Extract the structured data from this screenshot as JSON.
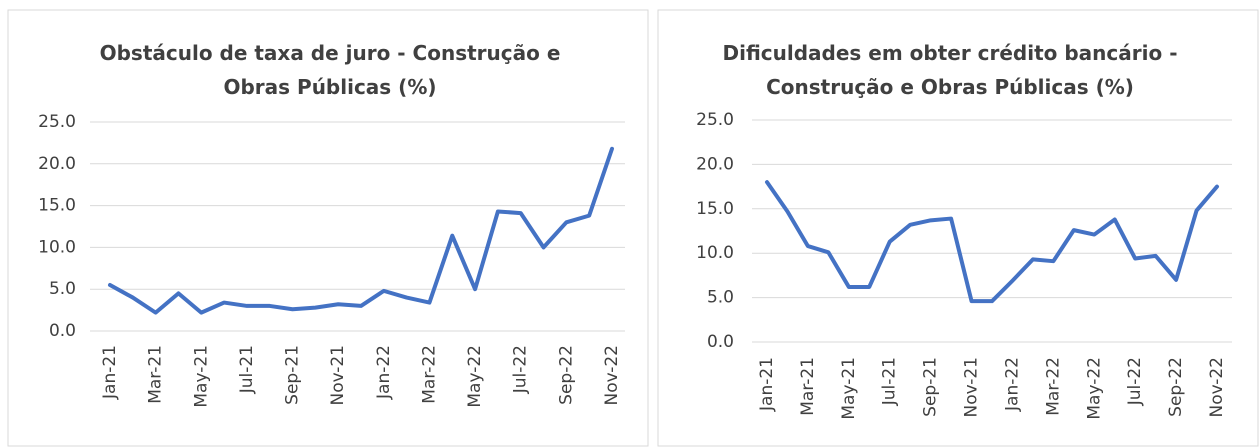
{
  "chart_data": [
    {
      "type": "line",
      "title": "Obstáculo de taxa de juro - Construção e Obras Públicas (%)",
      "categories": [
        "Jan-21",
        null,
        "Mar-21",
        null,
        "May-21",
        null,
        "Jul-21",
        null,
        "Sep-21",
        null,
        "Nov-21",
        null,
        "Jan-22",
        null,
        "Mar-22",
        null,
        "May-22",
        null,
        "Jul-22",
        null,
        "Sep-22",
        null,
        "Nov-22"
      ],
      "values": [
        5.5,
        4.0,
        2.2,
        4.5,
        2.2,
        3.4,
        3.0,
        3.0,
        2.6,
        2.8,
        3.2,
        3.0,
        4.8,
        4.0,
        3.4,
        11.4,
        5.0,
        14.3,
        14.1,
        10.0,
        13.0,
        13.8,
        21.8
      ],
      "color": "#4472c4",
      "ylim": [
        0,
        25
      ],
      "yticks": [
        {
          "value": 0,
          "label": "0.0"
        },
        {
          "value": 5,
          "label": "5.0"
        },
        {
          "value": 10,
          "label": "10.0"
        },
        {
          "value": 15,
          "label": "15.0"
        },
        {
          "value": 20,
          "label": "20.0"
        },
        {
          "value": 25,
          "label": "25.0"
        }
      ],
      "grid": true
    },
    {
      "type": "line",
      "title": "Dificuldades em obter crédito bancário - Construção e Obras Públicas (%)",
      "categories": [
        "Jan-21",
        null,
        "Mar-21",
        null,
        "May-21",
        null,
        "Jul-21",
        null,
        "Sep-21",
        null,
        "Nov-21",
        null,
        "Jan-22",
        null,
        "Mar-22",
        null,
        "May-22",
        null,
        "Jul-22",
        null,
        "Sep-22",
        null,
        "Nov-22"
      ],
      "values": [
        18.0,
        14.7,
        10.8,
        10.1,
        6.2,
        6.2,
        11.3,
        13.2,
        13.7,
        13.9,
        4.6,
        4.6,
        6.9,
        9.3,
        9.1,
        12.6,
        12.1,
        13.8,
        9.4,
        9.7,
        7.0,
        14.8,
        17.5
      ],
      "color": "#4472c4",
      "ylim": [
        0,
        25
      ],
      "yticks": [
        {
          "value": 0,
          "label": "0.0"
        },
        {
          "value": 5,
          "label": "5.0"
        },
        {
          "value": 10,
          "label": "10.0"
        },
        {
          "value": 15,
          "label": "15.0"
        },
        {
          "value": 20,
          "label": "20.0"
        },
        {
          "value": 25,
          "label": "25.0"
        }
      ],
      "grid": true
    }
  ]
}
